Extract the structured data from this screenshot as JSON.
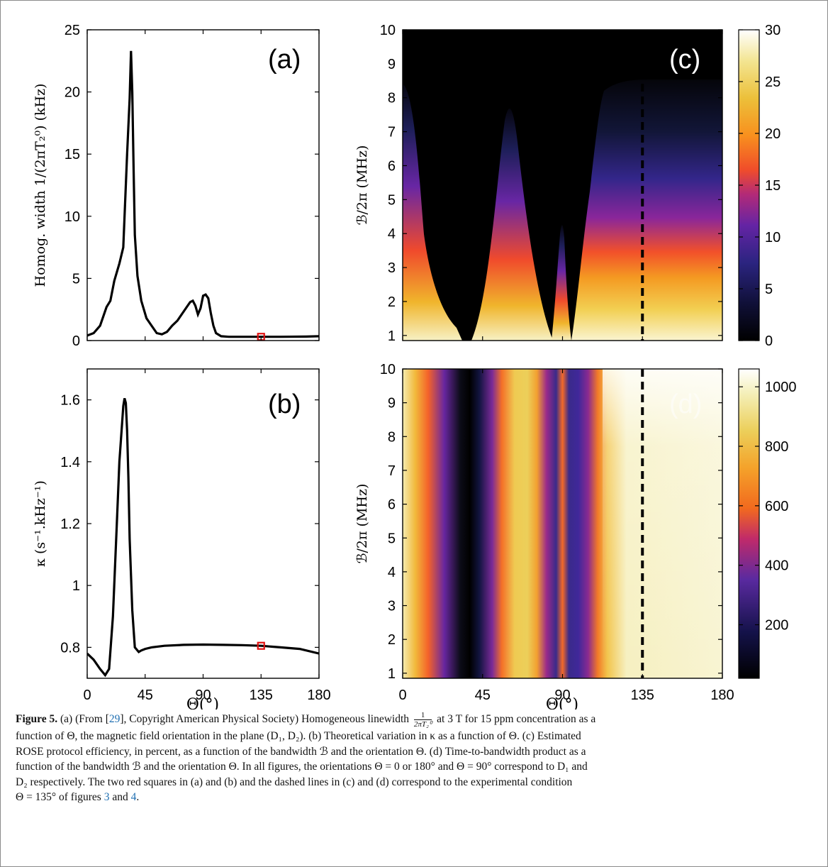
{
  "figure": {
    "panel_a": {
      "label": "(a)",
      "ylabel": "Homog. width 1/(2πT₂⁰) (kHz)",
      "yticks": [
        "0",
        "5",
        "10",
        "15",
        "20",
        "25"
      ]
    },
    "panel_b": {
      "label": "(b)",
      "ylabel": "κ (s⁻¹.kHz⁻¹)",
      "yticks": [
        "0.8",
        "1",
        "1.2",
        "1.4",
        "1.6"
      ],
      "xlabel": "Θ(°)"
    },
    "panel_c": {
      "label": "(c)",
      "ylabel": "ℬ/2π (MHz)",
      "colorbar_ticks": [
        "0",
        "5",
        "10",
        "15",
        "20",
        "25",
        "30"
      ]
    },
    "panel_d": {
      "label": "(d)",
      "ylabel": "ℬ/2π (MHz)",
      "xlabel": "Θ(°)",
      "colorbar_ticks": [
        "200",
        "400",
        "600",
        "800",
        "1000"
      ]
    },
    "xticks": [
      "0",
      "45",
      "90",
      "135",
      "180"
    ],
    "bticks": [
      "1",
      "2",
      "3",
      "4",
      "5",
      "6",
      "7",
      "8",
      "9",
      "10"
    ]
  },
  "chart_data": [
    {
      "type": "line",
      "panel": "(a)",
      "xlabel": "Θ(°)",
      "ylabel": "Homog. width 1/(2πT₂⁰) (kHz)",
      "xlim": [
        0,
        180
      ],
      "ylim": [
        0,
        25
      ],
      "x": [
        0,
        5,
        10,
        15,
        18,
        21,
        25,
        28,
        31,
        33,
        34,
        35,
        36,
        37,
        39,
        42,
        46,
        50,
        54,
        58,
        62,
        66,
        70,
        74,
        78,
        80,
        82,
        84,
        86,
        88,
        90,
        92,
        94,
        96,
        98,
        100,
        104,
        110,
        120,
        135,
        150,
        170,
        180
      ],
      "y": [
        0.4,
        0.6,
        1.2,
        2.7,
        3.2,
        4.8,
        6.2,
        7.5,
        15,
        19.5,
        23.3,
        20,
        14,
        8.5,
        5.2,
        3.2,
        1.8,
        1.2,
        0.6,
        0.5,
        0.7,
        1.2,
        1.6,
        2.2,
        2.8,
        3.1,
        3.2,
        2.8,
        2.1,
        2.6,
        3.6,
        3.7,
        3.4,
        2.2,
        1.2,
        0.6,
        0.35,
        0.3,
        0.3,
        0.3,
        0.3,
        0.32,
        0.35
      ],
      "marker": {
        "x": 135,
        "y": 0.3,
        "color": "#e01010"
      },
      "grid": false
    },
    {
      "type": "line",
      "panel": "(b)",
      "xlabel": "Θ(°)",
      "ylabel": "κ (s⁻¹.kHz⁻¹)",
      "xlim": [
        0,
        180
      ],
      "ylim": [
        0.7,
        1.7
      ],
      "x": [
        0,
        5,
        10,
        14,
        17,
        20,
        23,
        25,
        27,
        28,
        29,
        30,
        31,
        32,
        33,
        35,
        37,
        40,
        42,
        45,
        50,
        60,
        75,
        90,
        105,
        120,
        135,
        150,
        165,
        180
      ],
      "y": [
        0.78,
        0.76,
        0.73,
        0.71,
        0.73,
        0.9,
        1.2,
        1.4,
        1.52,
        1.58,
        1.605,
        1.59,
        1.5,
        1.35,
        1.15,
        0.92,
        0.8,
        0.785,
        0.79,
        0.795,
        0.8,
        0.805,
        0.808,
        0.809,
        0.808,
        0.807,
        0.805,
        0.8,
        0.795,
        0.78
      ],
      "marker": {
        "x": 135,
        "y": 0.805,
        "color": "#e01010"
      },
      "grid": false
    },
    {
      "type": "heatmap",
      "panel": "(c)",
      "xlabel": "",
      "ylabel": "ℬ/2π (MHz)",
      "xlim": [
        0,
        180
      ],
      "ylim": [
        0.85,
        10
      ],
      "colorbar": {
        "min": 0,
        "max": 30
      },
      "dashed_line_x": 135
    },
    {
      "type": "heatmap",
      "panel": "(d)",
      "xlabel": "Θ(°)",
      "ylabel": "ℬ/2π (MHz)",
      "xlim": [
        0,
        180
      ],
      "ylim": [
        0.85,
        10
      ],
      "colorbar": {
        "min": 20,
        "max": 1060
      },
      "dashed_line_x": 135
    }
  ],
  "caption": {
    "figure_label": "Figure 5.",
    "line1_a": "(a) (From [",
    "ref29": "29",
    "line1_b": "], Copyright American Physical Society) Homogeneous linewidth",
    "frac_num": "1",
    "frac_den": "2πT₂⁰",
    "line1_c": "at 3 T for 15 ppm concentration as a",
    "line2": "function of Θ, the magnetic field orientation in the plane (D₁, D₂). (b) Theoretical variation in κ as a function of Θ. (c) Estimated",
    "line3": "ROSE protocol efficiency, in percent, as a function of the bandwidth ℬ and the orientation Θ. (d) Time-to-bandwidth product as a",
    "line4": "function of the bandwidth ℬ and the orientation Θ. In all figures, the orientations Θ = 0 or 180° and Θ = 90° correspond to D₁ and",
    "line5": "D₂ respectively. The two red squares in (a) and (b) and the dashed lines in (c) and (d) correspond to the experimental condition",
    "line6_a": "Θ = 135° of figures",
    "ref3": "3",
    "line6_and": "and",
    "ref4": "4",
    "line6_end": "."
  }
}
